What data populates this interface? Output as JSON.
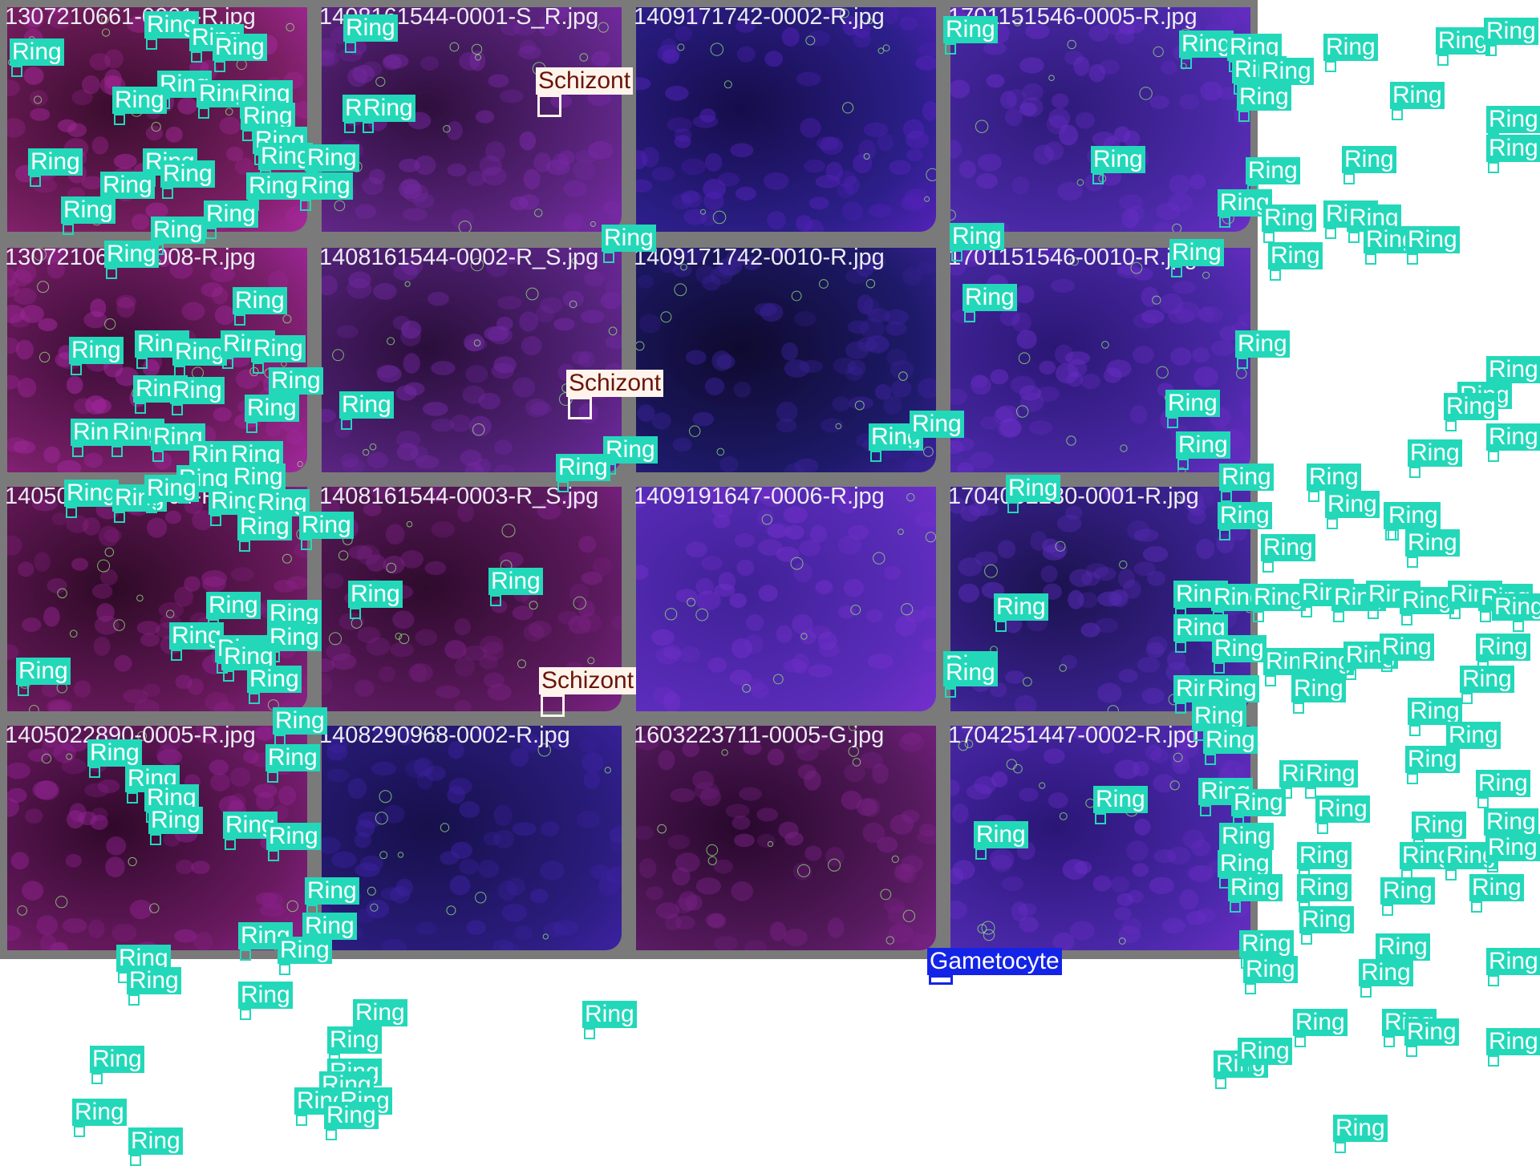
{
  "tiles": [
    {
      "file": "1307210661-0001-R.jpg",
      "tone": [
        "#3a0d2e",
        "#7a1f63",
        "#a5289a"
      ],
      "labels": [
        [
          "Ring",
          12,
          48
        ],
        [
          "Ring",
          180,
          14
        ],
        [
          "Ring",
          236,
          30
        ],
        [
          "Ring",
          265,
          42
        ],
        [
          "Ring",
          428,
          18
        ],
        [
          "Ring",
          196,
          88
        ],
        [
          "Ring",
          140,
          108
        ],
        [
          "Ring",
          245,
          100
        ],
        [
          "Ring",
          297,
          100
        ],
        [
          "Ring",
          300,
          128
        ],
        [
          "Ring",
          315,
          158
        ],
        [
          "Ring",
          35,
          185
        ],
        [
          "Ring",
          178,
          185
        ],
        [
          "Ring",
          200,
          200
        ],
        [
          "Ring",
          322,
          178
        ],
        [
          "Ring",
          380,
          180
        ],
        [
          "Ring",
          125,
          214
        ],
        [
          "Ring",
          307,
          215
        ],
        [
          "Ring",
          372,
          215
        ],
        [
          "Ring",
          427,
          118
        ],
        [
          "Ring",
          450,
          118
        ],
        [
          "Ring",
          76,
          245
        ],
        [
          "Ring",
          254,
          250
        ],
        [
          "Ring",
          188,
          270
        ],
        [
          "Ring",
          130,
          300
        ]
      ]
    },
    {
      "file": "1408161544-0001-S_R.jpg",
      "tone": [
        "#2e0f3c",
        "#5c2581",
        "#7a2aa8"
      ],
      "labels": [
        [
          "Schizont",
          668,
          84,
          "schizont"
        ],
        [
          "Ring",
          750,
          280
        ]
      ]
    },
    {
      "file": "1409171742-0002-R.jpg",
      "tone": [
        "#150d4a",
        "#2c1f8a",
        "#5322b8"
      ],
      "labels": [
        [
          "Ring",
          1176,
          20
        ],
        [
          "Ring",
          1360,
          182
        ],
        [
          "Ring",
          1184,
          278
        ]
      ]
    },
    {
      "file": "1701151546-0005-R.jpg",
      "tone": [
        "#2d1a78",
        "#4d2aaa",
        "#6a2ec8"
      ],
      "labels": [
        [
          "Ring",
          1470,
          38
        ],
        [
          "Ring",
          1530,
          42
        ],
        [
          "Ring",
          1650,
          42
        ],
        [
          "Ring",
          1790,
          34
        ],
        [
          "Ring",
          1850,
          22
        ],
        [
          "Ring",
          1536,
          70
        ],
        [
          "Ring",
          1570,
          72
        ],
        [
          "Ring",
          1542,
          104
        ],
        [
          "Ring",
          1733,
          102
        ],
        [
          "Ring",
          1853,
          132
        ],
        [
          "Ring",
          1853,
          168
        ],
        [
          "Ring",
          1673,
          182
        ],
        [
          "Ring",
          1553,
          196
        ],
        [
          "Ring",
          1518,
          236
        ],
        [
          "Ring",
          1573,
          255
        ],
        [
          "Ring",
          1650,
          250
        ],
        [
          "Ring",
          1679,
          255
        ],
        [
          "Ring",
          1458,
          298
        ],
        [
          "Ring",
          1581,
          302
        ],
        [
          "Ring",
          1700,
          282
        ],
        [
          "Ring",
          1752,
          282
        ]
      ]
    },
    {
      "file": "1307210661-0008-R.jpg",
      "tone": [
        "#3a0d34",
        "#7a1f6a",
        "#a428a0"
      ],
      "labels": [
        [
          "Ring",
          290,
          358
        ],
        [
          "Ring",
          86,
          420
        ],
        [
          "Ring",
          168,
          412
        ],
        [
          "Ring",
          215,
          422
        ],
        [
          "Ring",
          275,
          412
        ],
        [
          "Ring",
          313,
          418
        ],
        [
          "Ring",
          335,
          458
        ],
        [
          "Ring",
          166,
          468
        ],
        [
          "Ring",
          212,
          470
        ],
        [
          "Ring",
          305,
          492
        ],
        [
          "Ring",
          423,
          488
        ],
        [
          "Ring",
          88,
          522
        ],
        [
          "Ring",
          137,
          522
        ],
        [
          "Ring",
          188,
          528
        ],
        [
          "Ring",
          236,
          550
        ],
        [
          "Ring",
          285,
          550
        ],
        [
          "Ring",
          220,
          580
        ],
        [
          "Ring",
          288,
          578
        ],
        [
          "Ring",
          80,
          598
        ],
        [
          "Ring",
          140,
          604
        ],
        [
          "Ring",
          180,
          592
        ],
        [
          "Ring",
          260,
          608
        ],
        [
          "Ring",
          318,
          610
        ],
        [
          "Ring",
          296,
          640
        ],
        [
          "Ring",
          373,
          638
        ]
      ]
    },
    {
      "file": "1408161544-0002-R_S.jpg",
      "tone": [
        "#2a0e3a",
        "#55237c",
        "#7329a4"
      ],
      "labels": [
        [
          "Schizont",
          706,
          461,
          "schizont"
        ],
        [
          "Ring",
          752,
          544
        ],
        [
          "Ring",
          693,
          566
        ]
      ]
    },
    {
      "file": "1409171742-0010-R.jpg",
      "tone": [
        "#0e0a2e",
        "#1e1a6a",
        "#3b2298"
      ],
      "labels": [
        [
          "Ring",
          1200,
          354
        ],
        [
          "Ring",
          1083,
          528
        ],
        [
          "Ring",
          1134,
          512
        ],
        [
          "Ring",
          1254,
          592
        ]
      ]
    },
    {
      "file": "1701151546-0010-R.jpg",
      "tone": [
        "#2a1774",
        "#4a28a6",
        "#6a2ec6"
      ],
      "labels": [
        [
          "Ring",
          1540,
          412
        ],
        [
          "Ring",
          1853,
          444
        ],
        [
          "Ring",
          1817,
          476
        ],
        [
          "Ring",
          1800,
          490
        ],
        [
          "Ring",
          1853,
          528
        ],
        [
          "Ring",
          1453,
          486
        ],
        [
          "Ring",
          1466,
          538
        ],
        [
          "Ring",
          1755,
          548
        ],
        [
          "Ring",
          1520,
          578
        ],
        [
          "Ring",
          1629,
          578
        ],
        [
          "Ring",
          1652,
          612
        ],
        [
          "Ring",
          1725,
          626
        ],
        [
          "Ring",
          1518,
          626
        ],
        [
          "Ring",
          1572,
          666
        ],
        [
          "Ring",
          1728,
          626
        ],
        [
          "Ring",
          1752,
          660
        ]
      ]
    },
    {
      "file": "1405022890-0004-R.jpg",
      "tone": [
        "#2e0a26",
        "#66195a",
        "#8d2288"
      ],
      "labels": [
        [
          "Ring",
          434,
          724
        ],
        [
          "Ring",
          257,
          738
        ],
        [
          "Ring",
          333,
          748
        ],
        [
          "Ring",
          211,
          776
        ],
        [
          "Ring",
          268,
          792
        ],
        [
          "Ring",
          333,
          778
        ],
        [
          "Ring",
          276,
          802
        ],
        [
          "Ring",
          308,
          830
        ],
        [
          "Ring",
          20,
          820
        ],
        [
          "Ring",
          340,
          882
        ],
        [
          "Ring",
          109,
          922
        ],
        [
          "Ring",
          156,
          954
        ],
        [
          "Ring",
          180,
          978
        ],
        [
          "Ring",
          331,
          928
        ],
        [
          "Ring",
          185,
          1006
        ],
        [
          "Ring",
          278,
          1012
        ],
        [
          "Ring",
          332,
          1026
        ]
      ]
    },
    {
      "file": "1408161544-0003-R_S.jpg",
      "tone": [
        "#2e0b2c",
        "#5c1a5e",
        "#7c2286"
      ],
      "labels": [
        [
          "Ring",
          609,
          708
        ],
        [
          "Schizont",
          672,
          832,
          "schizont"
        ]
      ]
    },
    {
      "file": "1409191647-0006-R.jpg",
      "tone": [
        "#3f2196",
        "#5a2cba",
        "#7430cc"
      ],
      "labels": [
        [
          "Ring",
          1239,
          740
        ],
        [
          "Ring",
          1176,
          812
        ],
        [
          "Ring",
          1176,
          822
        ],
        [
          "Ring",
          1363,
          980
        ],
        [
          "Ring",
          1214,
          1024
        ]
      ]
    },
    {
      "file": "1704052230-0001-R.jpg",
      "tone": [
        "#1b124e",
        "#3a2290",
        "#5a2cb8"
      ],
      "labels": [
        [
          "Ring",
          1463,
          724
        ],
        [
          "Ring",
          1510,
          728
        ],
        [
          "Ring",
          1560,
          728
        ],
        [
          "Ring",
          1620,
          722
        ],
        [
          "Ring",
          1660,
          728
        ],
        [
          "Ring",
          1703,
          724
        ],
        [
          "Ring",
          1745,
          732
        ],
        [
          "Ring",
          1805,
          724
        ],
        [
          "Ring",
          1843,
          728
        ],
        [
          "Ring",
          1884,
          740
        ],
        [
          "Ring",
          1463,
          766
        ],
        [
          "Ring",
          1511,
          792
        ],
        [
          "Ring",
          1575,
          808
        ],
        [
          "Ring",
          1620,
          808
        ],
        [
          "Ring",
          1675,
          800
        ],
        [
          "Ring",
          1720,
          790
        ],
        [
          "Ring",
          1840,
          790
        ],
        [
          "Ring",
          1820,
          830
        ],
        [
          "Ring",
          1463,
          842
        ],
        [
          "Ring",
          1502,
          842
        ],
        [
          "Ring",
          1610,
          842
        ],
        [
          "Ring",
          1755,
          870
        ],
        [
          "Ring",
          1803,
          900
        ],
        [
          "Ring",
          1486,
          876
        ],
        [
          "Ring",
          1500,
          906
        ],
        [
          "Ring",
          1595,
          948
        ],
        [
          "Ring",
          1625,
          948
        ],
        [
          "Ring",
          1752,
          930
        ],
        [
          "Ring",
          1840,
          960
        ],
        [
          "Ring",
          1494,
          970
        ],
        [
          "Ring",
          1535,
          984
        ],
        [
          "Ring",
          1640,
          992
        ],
        [
          "Ring",
          1760,
          1012
        ],
        [
          "Ring",
          1850,
          1008
        ],
        [
          "Ring",
          1520,
          1026
        ],
        [
          "Ring",
          1617,
          1050
        ],
        [
          "Ring",
          1745,
          1050
        ],
        [
          "Ring",
          1800,
          1050
        ],
        [
          "Ring",
          1518,
          1060
        ],
        [
          "Ring",
          1852,
          1040
        ]
      ]
    },
    {
      "file": "1405022890-0005-R.jpg",
      "tone": [
        "#30092a",
        "#691a60",
        "#8f2290"
      ],
      "labels": [
        [
          "Ring",
          380,
          1094
        ],
        [
          "Ring",
          377,
          1138
        ],
        [
          "Ring",
          297,
          1150
        ],
        [
          "Ring",
          346,
          1168
        ],
        [
          "Ring",
          145,
          1178
        ],
        [
          "Ring",
          158,
          1206
        ],
        [
          "Ring",
          297,
          1224
        ],
        [
          "Ring",
          440,
          1246
        ],
        [
          "Ring",
          408,
          1280
        ],
        [
          "Ring",
          112,
          1304
        ],
        [
          "Ring",
          408,
          1320
        ],
        [
          "Ring",
          398,
          1336
        ],
        [
          "Ring",
          367,
          1356
        ],
        [
          "Ring",
          421,
          1356
        ],
        [
          "Ring",
          404,
          1374
        ],
        [
          "Ring",
          90,
          1370
        ],
        [
          "Ring",
          160,
          1406
        ]
      ]
    },
    {
      "file": "1408290968-0002-R.jpg",
      "tone": [
        "#16104a",
        "#2a1c7c",
        "#3d22a2"
      ],
      "labels": [
        [
          "Ring",
          726,
          1248
        ]
      ]
    },
    {
      "file": "1603223711-0005-G.jpg",
      "tone": [
        "#28082c",
        "#561a5e",
        "#782284"
      ],
      "labels": [
        [
          "Gametocyte",
          1156,
          1182,
          "gametocyte"
        ]
      ]
    },
    {
      "file": "1704251447-0002-R.jpg",
      "tone": [
        "#2a1676",
        "#4b28aa",
        "#6a2ec6"
      ],
      "labels": [
        [
          "Ring",
          1531,
          1090
        ],
        [
          "Ring",
          1617,
          1090
        ],
        [
          "Ring",
          1721,
          1094
        ],
        [
          "Ring",
          1832,
          1090
        ],
        [
          "Ring",
          1620,
          1130
        ],
        [
          "Ring",
          1545,
          1160
        ],
        [
          "Ring",
          1715,
          1164
        ],
        [
          "Ring",
          1550,
          1192
        ],
        [
          "Ring",
          1694,
          1196
        ],
        [
          "Ring",
          1853,
          1182
        ],
        [
          "Ring",
          1612,
          1258
        ],
        [
          "Ring",
          1723,
          1258
        ],
        [
          "Ring",
          1751,
          1270
        ],
        [
          "Ring",
          1853,
          1282
        ],
        [
          "Ring",
          1513,
          1310
        ],
        [
          "Ring",
          1543,
          1294
        ],
        [
          "Ring",
          1662,
          1390
        ]
      ]
    }
  ]
}
